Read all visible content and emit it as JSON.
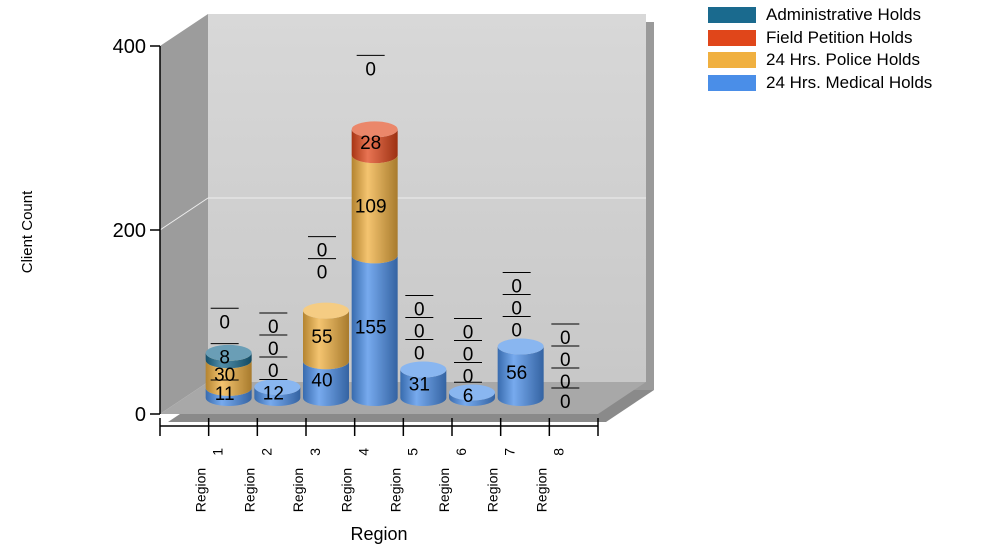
{
  "chart_data": {
    "type": "bar",
    "stacked": true,
    "three_d": true,
    "title": "",
    "xlabel": "Region",
    "ylabel": "Client Count",
    "ylim": [
      0,
      400
    ],
    "y_ticks": [
      "0",
      "200",
      "400"
    ],
    "categories": [
      "Region 1",
      "Region 2",
      "Region 3",
      "Region 4",
      "Region 5",
      "Region 6",
      "Region 7",
      "Region 8"
    ],
    "series": [
      {
        "name": "24 Hrs. Medical Holds",
        "color": "#4a8ee8",
        "values": [
          11,
          12,
          40,
          155,
          31,
          6,
          56,
          0
        ]
      },
      {
        "name": "24 Hrs. Police Holds",
        "color": "#f0b040",
        "values": [
          30,
          0,
          55,
          109,
          0,
          0,
          0,
          0
        ]
      },
      {
        "name": "Field Petition Holds",
        "color": "#e0461a",
        "values": [
          0,
          0,
          0,
          28,
          0,
          0,
          0,
          0
        ]
      },
      {
        "name": "Administrative Holds",
        "color": "#1a6a8e",
        "values": [
          8,
          0,
          0,
          0,
          0,
          0,
          0,
          0
        ]
      }
    ],
    "legend_order": [
      "Administrative Holds",
      "Field Petition Holds",
      "24 Hrs. Police Holds",
      "24 Hrs. Medical Holds"
    ],
    "legend_position": "top-right",
    "grid": true
  }
}
